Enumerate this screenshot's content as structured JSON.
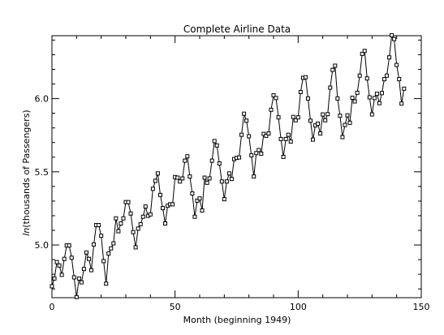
{
  "chart_data": {
    "type": "line",
    "title": "Complete Airline Data",
    "xlabel": "Month (beginning 1949)",
    "ylabel_italic": "ln",
    "ylabel_rest": "(thousands of Passengers)",
    "xlim": [
      0,
      150
    ],
    "ylim": [
      4.64,
      6.43
    ],
    "x_ticks": [
      0,
      50,
      100,
      150
    ],
    "y_ticks": [
      5.0,
      5.5,
      6.0
    ],
    "x_tick_labels": [
      "0",
      "50",
      "100",
      "150"
    ],
    "y_tick_labels": [
      "5.0",
      "5.5",
      "6.0"
    ],
    "x_minor_step": 10,
    "y_minor_step": 0.1,
    "marker": "square",
    "line_color": "#000000",
    "series": [
      {
        "x": [
          0,
          1,
          2,
          3,
          4,
          5,
          6,
          7,
          8,
          9,
          10,
          11,
          12,
          13,
          14,
          15,
          16,
          17,
          18,
          19,
          20,
          21,
          22,
          23,
          24,
          25,
          26,
          27,
          28,
          29,
          30,
          31,
          32,
          33,
          34,
          35,
          36,
          37,
          38,
          39,
          40,
          41,
          42,
          43,
          44,
          45,
          46,
          47,
          48,
          49,
          50,
          51,
          52,
          53,
          54,
          55,
          56,
          57,
          58,
          59,
          60,
          61,
          62,
          63,
          64,
          65,
          66,
          67,
          68,
          69,
          70,
          71,
          72,
          73,
          74,
          75,
          76,
          77,
          78,
          79,
          80,
          81,
          82,
          83,
          84,
          85,
          86,
          87,
          88,
          89,
          90,
          91,
          92,
          93,
          94,
          95,
          96,
          97,
          98,
          99,
          100,
          101,
          102,
          103,
          104,
          105,
          106,
          107,
          108,
          109,
          110,
          111,
          112,
          113,
          114,
          115,
          116,
          117,
          118,
          119,
          120,
          121,
          122,
          123,
          124,
          125,
          126,
          127,
          128,
          129,
          130,
          131,
          132,
          133,
          134,
          135,
          136,
          137,
          138,
          139,
          140,
          141,
          142,
          143
        ],
        "y": [
          4.718,
          4.771,
          4.883,
          4.86,
          4.796,
          4.905,
          4.997,
          4.997,
          4.913,
          4.779,
          4.644,
          4.771,
          4.745,
          4.836,
          4.949,
          4.905,
          4.828,
          5.004,
          5.136,
          5.136,
          5.063,
          4.89,
          4.736,
          4.942,
          4.977,
          5.011,
          5.182,
          5.094,
          5.147,
          5.182,
          5.293,
          5.293,
          5.215,
          5.088,
          4.984,
          5.112,
          5.142,
          5.193,
          5.263,
          5.199,
          5.209,
          5.384,
          5.438,
          5.489,
          5.342,
          5.252,
          5.147,
          5.268,
          5.278,
          5.278,
          5.464,
          5.46,
          5.434,
          5.455,
          5.576,
          5.606,
          5.468,
          5.352,
          5.193,
          5.303,
          5.318,
          5.236,
          5.46,
          5.425,
          5.455,
          5.576,
          5.71,
          5.68,
          5.557,
          5.434,
          5.313,
          5.434,
          5.489,
          5.451,
          5.587,
          5.595,
          5.598,
          5.753,
          5.897,
          5.849,
          5.743,
          5.613,
          5.468,
          5.628,
          5.649,
          5.624,
          5.759,
          5.746,
          5.762,
          5.924,
          6.023,
          6.004,
          5.872,
          5.724,
          5.602,
          5.724,
          5.753,
          5.707,
          5.875,
          5.852,
          5.872,
          6.045,
          6.142,
          6.146,
          6.001,
          5.849,
          5.72,
          5.817,
          5.829,
          5.762,
          5.892,
          5.852,
          5.894,
          6.075,
          6.196,
          6.225,
          6.001,
          5.883,
          5.737,
          5.82,
          5.886,
          5.835,
          6.006,
          5.981,
          6.04,
          6.157,
          6.306,
          6.326,
          6.138,
          6.009,
          5.892,
          6.004,
          6.033,
          5.969,
          6.038,
          6.133,
          6.157,
          6.282,
          6.433,
          6.407,
          6.23,
          6.133,
          5.966,
          6.068
        ]
      }
    ]
  }
}
